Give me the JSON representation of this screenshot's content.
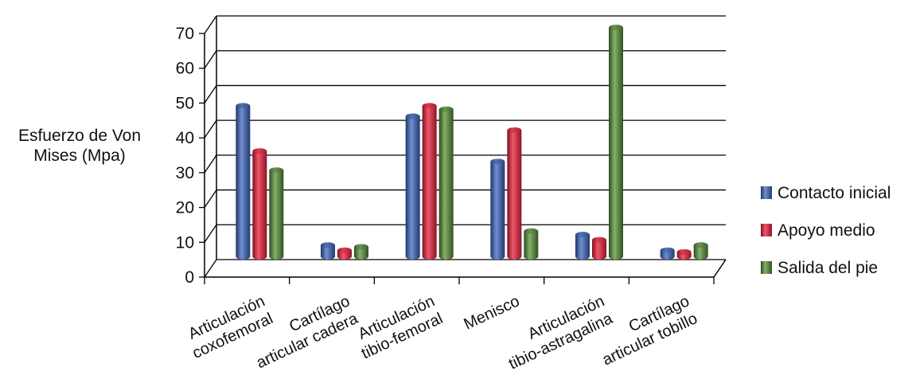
{
  "chart_data": {
    "type": "bar",
    "title": "",
    "ylabel_lines": [
      "Esfuerzo de Von",
      "Mises (Mpa)"
    ],
    "xlabel": "",
    "ylim": [
      0,
      70
    ],
    "yticks": [
      0,
      10,
      20,
      30,
      40,
      50,
      60,
      70
    ],
    "grid": true,
    "legend_position": "right",
    "categories": [
      [
        "Articulación",
        "coxofemoral"
      ],
      [
        "Cartílago",
        "articular cadera"
      ],
      [
        "Articulación",
        "tibio-femoral"
      ],
      [
        "Menisco"
      ],
      [
        "Articulación",
        "tibio-astragalina"
      ],
      [
        "Cartílago",
        "articular tobillo"
      ]
    ],
    "series": [
      {
        "name": "Contacto inicial",
        "color": "#3a5a9c",
        "values": [
          45,
          5,
          42,
          29,
          8,
          3.5
        ]
      },
      {
        "name": "Apoyo medio",
        "color": "#c8253a",
        "values": [
          32,
          3.5,
          45,
          38,
          6.5,
          3
        ]
      },
      {
        "name": "Salida del pie",
        "color": "#4e7a3a",
        "values": [
          26.5,
          4.5,
          44,
          9,
          67.5,
          5
        ]
      }
    ]
  }
}
